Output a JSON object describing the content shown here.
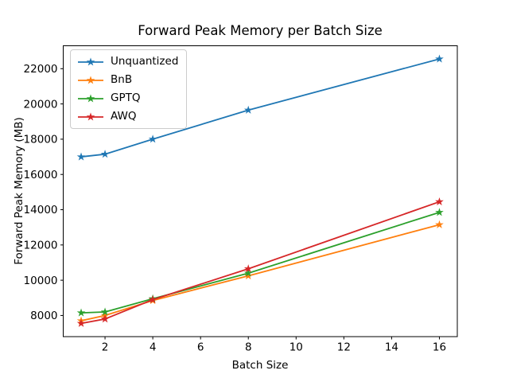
{
  "figure": {
    "background": "#ffffff",
    "text_color": "#000000"
  },
  "chart_data": {
    "type": "line",
    "title": "Forward Peak Memory per Batch Size",
    "xlabel": "Batch Size",
    "ylabel": "Forward Peak Memory (MB)",
    "x": [
      1,
      2,
      4,
      8,
      16
    ],
    "series": [
      {
        "name": "Unquantized",
        "color": "#1f77b4",
        "marker": "star",
        "values": [
          17000,
          17150,
          18000,
          19650,
          22550
        ]
      },
      {
        "name": "BnB",
        "color": "#ff7f0e",
        "marker": "star",
        "values": [
          7700,
          8000,
          8850,
          10250,
          13150
        ]
      },
      {
        "name": "GPTQ",
        "color": "#2ca02c",
        "marker": "star",
        "values": [
          8150,
          8200,
          8950,
          10400,
          13850
        ]
      },
      {
        "name": "AWQ",
        "color": "#d62728",
        "marker": "star",
        "values": [
          7550,
          7800,
          8900,
          10650,
          14450
        ]
      }
    ],
    "xlim": [
      0.25,
      16.75
    ],
    "ylim": [
      6800,
      23300
    ],
    "xticks": [
      2,
      4,
      6,
      8,
      10,
      12,
      14,
      16
    ],
    "yticks": [
      8000,
      10000,
      12000,
      14000,
      16000,
      18000,
      20000,
      22000
    ],
    "grid": false,
    "legend_position": "upper-left",
    "legend_labels": [
      "Unquantized",
      "BnB",
      "GPTQ",
      "AWQ"
    ]
  }
}
